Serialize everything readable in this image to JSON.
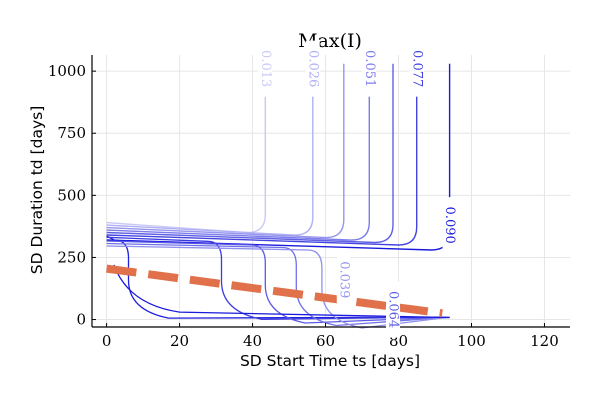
{
  "chart_data": {
    "type": "line",
    "title": "Max(I)",
    "xlabel": "SD Start Time ts [days]",
    "ylabel": "SD Duration td [days]",
    "xlim": [
      -4,
      127
    ],
    "ylim": [
      -30,
      1065
    ],
    "xticks": [
      0,
      20,
      40,
      60,
      80,
      100,
      120
    ],
    "yticks": [
      0,
      250,
      500,
      750,
      1000
    ],
    "grid": true,
    "contour_levels": [
      {
        "label": "0.013",
        "color": "#c9c9f7",
        "ts": 43.5,
        "plateau": 350,
        "show_label": true
      },
      {
        "label": "0.026",
        "color": "#b0b0f3",
        "ts": 56.5,
        "plateau": 340,
        "show_label": true
      },
      {
        "label": "0.039",
        "color": "#9696ef",
        "ts": 65.0,
        "plateau": 330,
        "show_label": true
      },
      {
        "label": "0.051",
        "color": "#7c7ceb",
        "ts": 72.0,
        "plateau": 320,
        "show_label": true
      },
      {
        "label": "0.064",
        "color": "#6060e6",
        "ts": 78.5,
        "plateau": 310,
        "show_label": true
      },
      {
        "label": "0.077",
        "color": "#4444e2",
        "ts": 85.0,
        "plateau": 300,
        "show_label": true
      },
      {
        "label": "0.090",
        "color": "#1a1ade",
        "ts": 94.0,
        "plateau": 280,
        "show_label": true
      }
    ],
    "inner_levels": [
      {
        "color": "#2020df",
        "ts": 6.0,
        "plateau": 320
      },
      {
        "color": "#3a3ae2",
        "ts": 31.5,
        "plateau": 315
      },
      {
        "color": "#5a5ae6",
        "ts": 43.5,
        "plateau": 300
      },
      {
        "color": "#7070e9",
        "ts": 52.0,
        "plateau": 290
      },
      {
        "color": "#9090ee",
        "ts": 59.0,
        "plateau": 280
      }
    ],
    "optimal_boundary": {
      "color": "#e0714a",
      "x": [
        0,
        92
      ],
      "y": [
        205,
        25
      ]
    }
  }
}
